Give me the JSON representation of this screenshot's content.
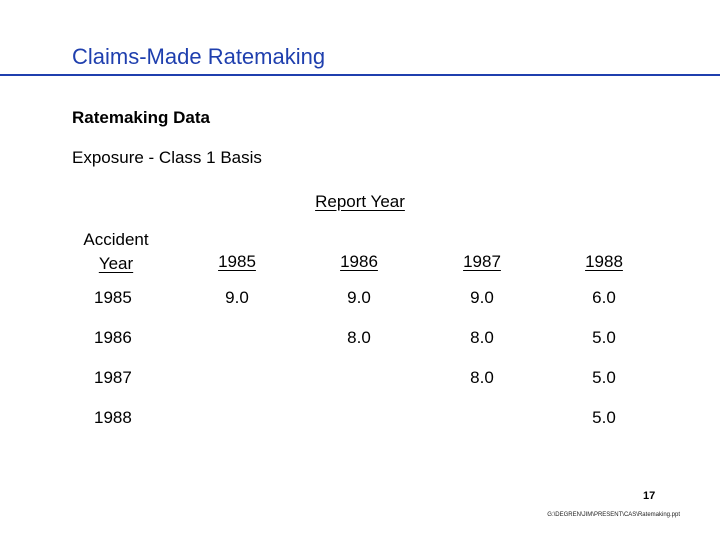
{
  "slide": {
    "title": "Claims-Made Ratemaking",
    "section_heading": "Ratemaking Data",
    "subheading": "Exposure - Class 1 Basis",
    "page_number": "17",
    "file_path": "G:\\DEGREN\\JIM\\PRESENT\\CAS\\Ratemaking.ppt"
  },
  "table": {
    "group_header": "Report Year",
    "corner_header_line1": "Accident",
    "corner_header_line2": "Year",
    "columns": [
      "1985",
      "1986",
      "1987",
      "1988"
    ],
    "rows": [
      {
        "label": "1985",
        "cells": [
          "9.0",
          "9.0",
          "9.0",
          "6.0"
        ]
      },
      {
        "label": "1986",
        "cells": [
          "",
          "8.0",
          "8.0",
          "5.0"
        ]
      },
      {
        "label": "1987",
        "cells": [
          "",
          "",
          "8.0",
          "5.0"
        ]
      },
      {
        "label": "1988",
        "cells": [
          "",
          "",
          "",
          "5.0"
        ]
      }
    ]
  },
  "colors": {
    "title": "#1f3fae"
  }
}
